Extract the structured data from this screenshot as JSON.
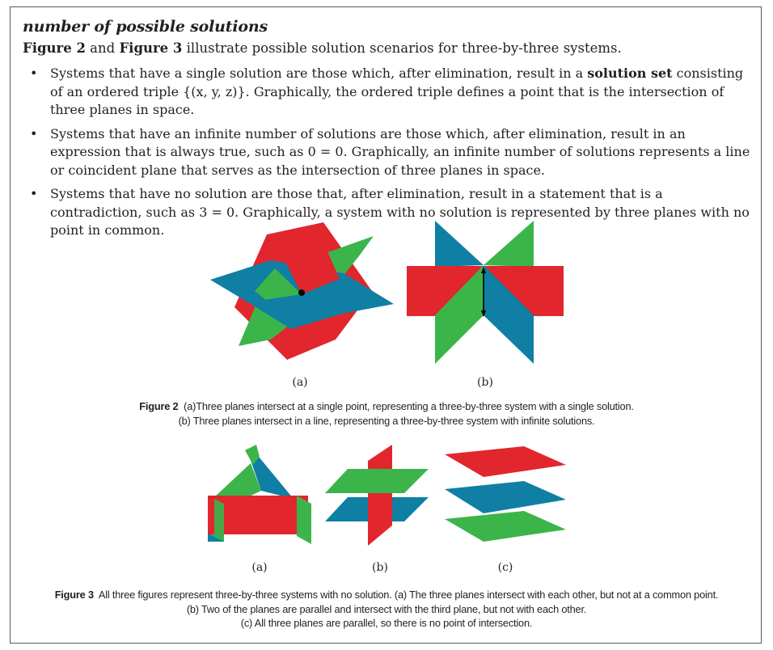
{
  "section_title": "number of possible solutions",
  "intro": {
    "fig2": "Figure 2",
    "and": " and ",
    "fig3": "Figure 3",
    "rest": " illustrate possible solution scenarios for three-by-three systems."
  },
  "bullets": [
    {
      "before": "Systems that have a single solution are those which, after elimination, result in a ",
      "bold": "solution set",
      "after": " consisting of an ordered triple {(x, y, z)}. Graphically, the ordered triple defines a point that is the intersection of three planes in space."
    },
    {
      "before": "Systems that have an infinite number of solutions are those which, after elimination, result in an expression that is always true, such as 0 = 0. Graphically, an infinite number of solutions represents a line or coincident plane that serves as the intersection of three planes in space.",
      "bold": "",
      "after": ""
    },
    {
      "before": "Systems that have no solution are those that, after elimination, result in a statement that is a contradiction, such as 3 = 0. Graphically, a system with no solution is represented by three planes with no point in common.",
      "bold": "",
      "after": ""
    }
  ],
  "figure2": {
    "label_a": "(a)",
    "label_b": "(b)",
    "caption_label": "Figure 2",
    "caption_line1": "(a)Three planes intersect at a single point, representing a three-by-three system with a single solution.",
    "caption_line2": "(b) Three planes intersect in a line, representing a three-by-three system with infinite solutions."
  },
  "figure3": {
    "label_a": "(a)",
    "label_b": "(b)",
    "label_c": "(c)",
    "caption_label": "Figure 3",
    "caption_line1": "All three figures represent three-by-three systems with no solution. (a) The three planes intersect with each other, but not at a common point.",
    "caption_line2": "(b) Two of the planes are parallel and intersect with the third plane, but not with each other.",
    "caption_line3": "(c) All three planes are parallel, so there is no point of intersection."
  },
  "colors": {
    "red": "#e1262d",
    "green": "#3bb54a",
    "blue": "#0f7fa4",
    "border": "#58595b"
  }
}
